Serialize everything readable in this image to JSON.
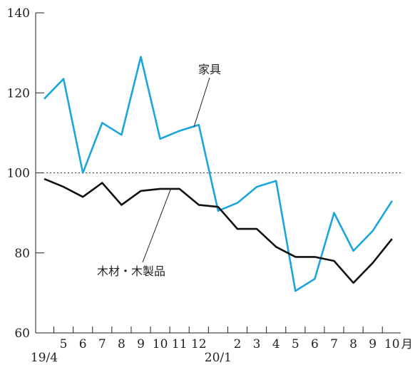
{
  "chart_data": {
    "type": "line",
    "title": "",
    "xlabel": "",
    "ylabel": "",
    "x": [
      "19/4",
      "5",
      "6",
      "7",
      "8",
      "9",
      "10",
      "11",
      "12",
      "20/1",
      "2",
      "3",
      "4",
      "5",
      "6",
      "7",
      "8",
      "9",
      "10"
    ],
    "x_tick_labels": [
      "",
      "5",
      "6",
      "7",
      "8",
      "9",
      "10",
      "11",
      "12",
      "",
      "2",
      "3",
      "4",
      "5",
      "6",
      "7",
      "8",
      "9",
      "10"
    ],
    "year_labels": [
      {
        "index": 0,
        "text": "19/4"
      },
      {
        "index": 9,
        "text": "20/1"
      }
    ],
    "x_unit_label": "月",
    "ylim": [
      60,
      140
    ],
    "yticks": [
      60,
      80,
      100,
      120,
      140
    ],
    "reference_line": {
      "y": 100,
      "style": "dotted"
    },
    "grid": false,
    "series": [
      {
        "name": "家具",
        "color": "#1aa6dc",
        "values": [
          118.5,
          123.5,
          100.0,
          112.5,
          109.5,
          129.0,
          108.5,
          110.5,
          112.0,
          90.5,
          92.5,
          96.5,
          98.0,
          70.5,
          73.5,
          90.0,
          80.5,
          85.5,
          93.0
        ]
      },
      {
        "name": "木材・木製品",
        "color": "#111111",
        "values": [
          98.5,
          96.5,
          94.0,
          97.5,
          92.0,
          95.5,
          96.0,
          96.0,
          92.0,
          91.5,
          86.0,
          86.0,
          81.5,
          79.0,
          79.0,
          78.0,
          72.5,
          77.5,
          83.5
        ]
      }
    ]
  }
}
